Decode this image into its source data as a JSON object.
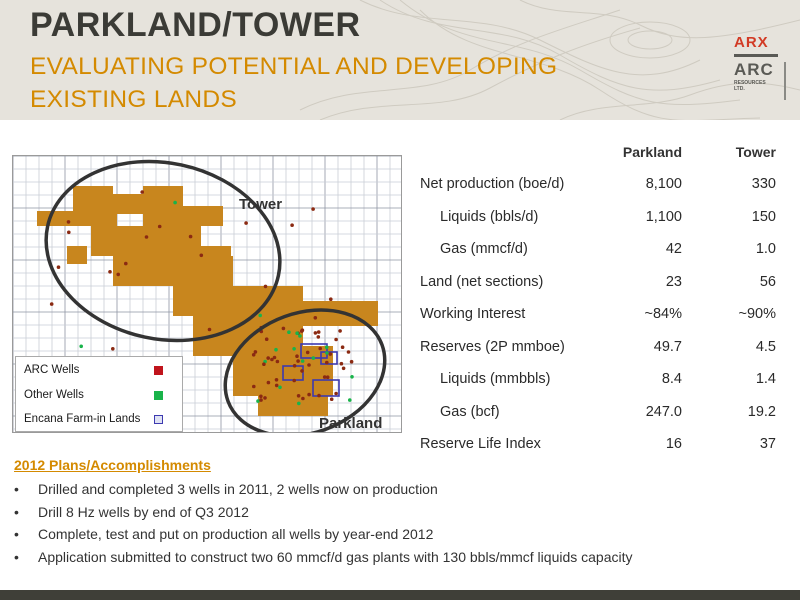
{
  "header": {
    "title": "PARKLAND/TOWER",
    "subtitle": "EVALUATING POTENTIAL AND DEVELOPING EXISTING LANDS",
    "logo_top": "ARX",
    "logo_main": "ARC",
    "logo_sub_1": "RESOURCES",
    "logo_sub_2": "LTD."
  },
  "map": {
    "label_tower": "Tower",
    "label_parkland": "Parkland",
    "legend": {
      "arc_wells": "ARC Wells",
      "other_wells": "Other Wells",
      "encana": "Encana Farm-in Lands"
    },
    "colors": {
      "lands": "#c8861e",
      "arc_wells": "#c0141c",
      "other_wells": "#19b34a",
      "encana": "#3d3ab0",
      "ellipse": "#333333"
    }
  },
  "table": {
    "columns": [
      "Parkland",
      "Tower"
    ],
    "rows": [
      {
        "label": "Net production (boe/d)",
        "parkland": "8,100",
        "tower": "330",
        "indent": false
      },
      {
        "label": "Liquids (bbls/d)",
        "parkland": "1,100",
        "tower": "150",
        "indent": true
      },
      {
        "label": "Gas (mmcf/d)",
        "parkland": "42",
        "tower": "1.0",
        "indent": true
      },
      {
        "label": "Land (net sections)",
        "parkland": "23",
        "tower": "56",
        "indent": false
      },
      {
        "label": "Working Interest",
        "parkland": "~84%",
        "tower": "~90%",
        "indent": false
      },
      {
        "label": "Reserves (2P mmboe)",
        "parkland": "49.7",
        "tower": "4.5",
        "indent": false
      },
      {
        "label": "Liquids (mmbbls)",
        "parkland": "8.4",
        "tower": "1.4",
        "indent": true
      },
      {
        "label": "Gas (bcf)",
        "parkland": "247.0",
        "tower": "19.2",
        "indent": true
      },
      {
        "label": "Reserve Life Index",
        "parkland": "16",
        "tower": "37",
        "indent": false
      }
    ]
  },
  "plans": {
    "title": "2012 Plans/Accomplishments",
    "items": [
      "Drilled and completed 3 wells in 2011, 2 wells now on production",
      "Drill 8 Hz wells by end of Q3 2012",
      "Complete, test and put on production all wells by year-end 2012",
      "Application submitted to construct two 60 mmcf/d gas plants with 130 bbls/mmcf liquids capacity"
    ],
    "bullet": "•"
  }
}
